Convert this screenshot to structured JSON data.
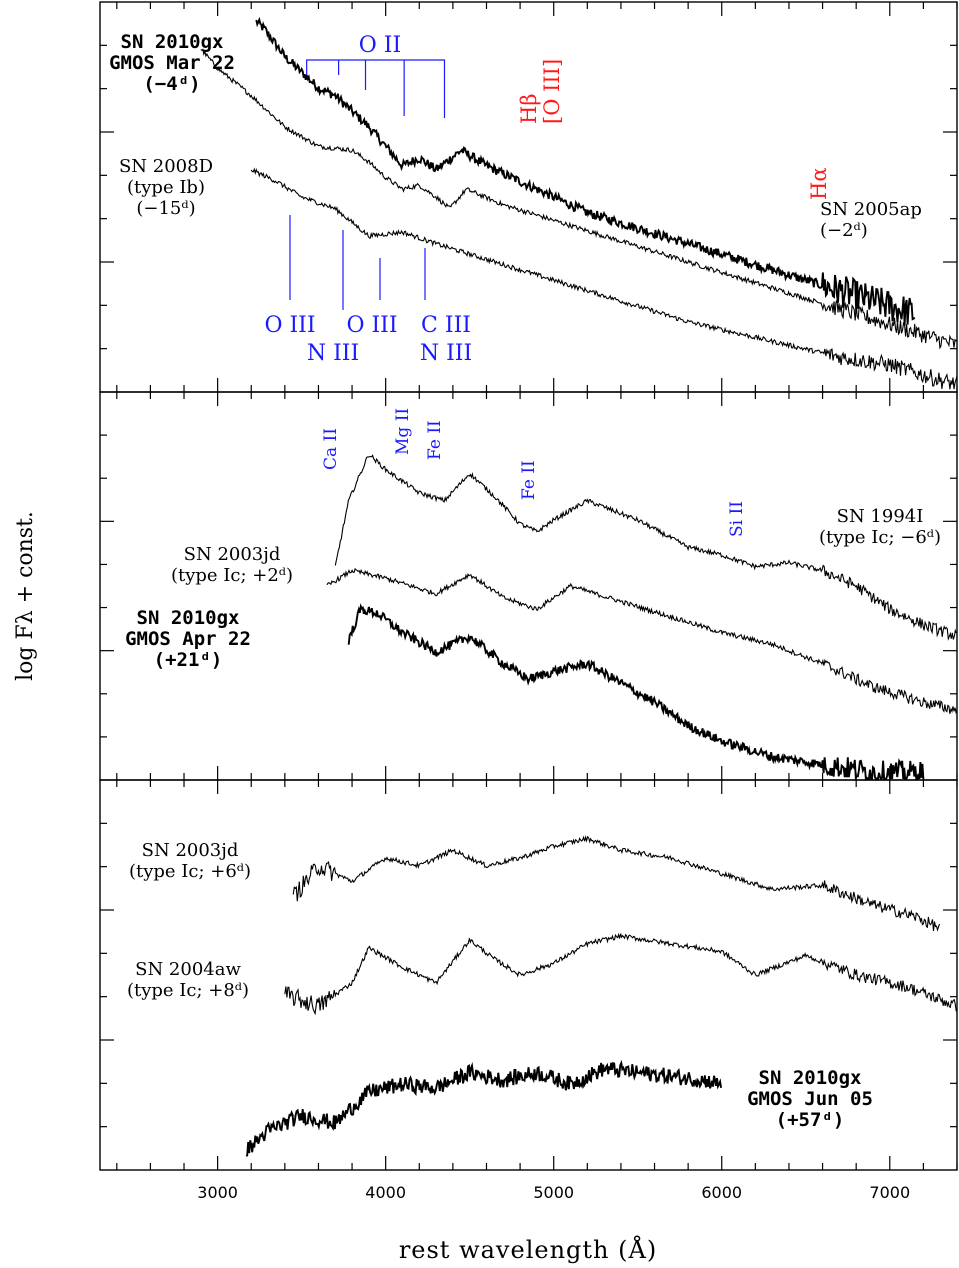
{
  "colors": {
    "ion_lines": "#1a1aff",
    "hydrogen_lines": "#ff1a1a",
    "spectra": "#000000"
  },
  "chart_data": {
    "type": "line",
    "xlabel": "rest wavelength (Å)",
    "ylabel": "log Fλ + const.",
    "xlim": [
      2300,
      7400
    ],
    "x_ticks": [
      3000,
      4000,
      5000,
      6000,
      7000
    ],
    "x_tick_labels": [
      "3000",
      "4000",
      "5000",
      "6000",
      "7000"
    ],
    "grid": false,
    "panels": [
      {
        "series": [
          {
            "label_lines": [
              "SN 2010gx",
              "GMOS Mar 22",
              "(−4ᵈ)"
            ],
            "bold": true,
            "points": [
              [
                3230,
                0.95
              ],
              [
                3280,
                0.93
              ],
              [
                3400,
                0.86
              ],
              [
                3500,
                0.82
              ],
              [
                3600,
                0.78
              ],
              [
                3700,
                0.76
              ],
              [
                3800,
                0.72
              ],
              [
                3900,
                0.68
              ],
              [
                4000,
                0.63
              ],
              [
                4100,
                0.58
              ],
              [
                4200,
                0.6
              ],
              [
                4300,
                0.57
              ],
              [
                4450,
                0.62
              ],
              [
                4600,
                0.58
              ],
              [
                4800,
                0.54
              ],
              [
                5000,
                0.5
              ],
              [
                5200,
                0.46
              ],
              [
                5500,
                0.42
              ],
              [
                5800,
                0.38
              ],
              [
                6100,
                0.34
              ],
              [
                6400,
                0.3
              ],
              [
                6700,
                0.26
              ],
              [
                7000,
                0.22
              ],
              [
                7150,
                0.2
              ]
            ]
          },
          {
            "label_lines": [
              "SN 2005ap",
              "(−2ᵈ)"
            ],
            "bold": false,
            "points": [
              [
                2900,
                0.88
              ],
              [
                3000,
                0.83
              ],
              [
                3200,
                0.76
              ],
              [
                3400,
                0.68
              ],
              [
                3600,
                0.63
              ],
              [
                3800,
                0.62
              ],
              [
                3900,
                0.59
              ],
              [
                4000,
                0.55
              ],
              [
                4100,
                0.52
              ],
              [
                4200,
                0.53
              ],
              [
                4300,
                0.5
              ],
              [
                4380,
                0.47
              ],
              [
                4480,
                0.52
              ],
              [
                4700,
                0.48
              ],
              [
                5000,
                0.44
              ],
              [
                5300,
                0.4
              ],
              [
                5600,
                0.36
              ],
              [
                5900,
                0.32
              ],
              [
                6200,
                0.28
              ],
              [
                6500,
                0.24
              ],
              [
                6800,
                0.2
              ],
              [
                7100,
                0.16
              ],
              [
                7400,
                0.12
              ]
            ]
          },
          {
            "label_lines": [
              "SN 2008D",
              "(type Ib)",
              "(−15ᵈ)"
            ],
            "bold": false,
            "points": [
              [
                3200,
                0.57
              ],
              [
                3350,
                0.54
              ],
              [
                3500,
                0.5
              ],
              [
                3700,
                0.47
              ],
              [
                3900,
                0.4
              ],
              [
                4100,
                0.41
              ],
              [
                4300,
                0.38
              ],
              [
                4600,
                0.34
              ],
              [
                4900,
                0.3
              ],
              [
                5200,
                0.26
              ],
              [
                5500,
                0.22
              ],
              [
                5800,
                0.18
              ],
              [
                6100,
                0.15
              ],
              [
                6400,
                0.12
              ],
              [
                6700,
                0.09
              ],
              [
                7000,
                0.07
              ],
              [
                7300,
                0.03
              ],
              [
                7400,
                0.02
              ]
            ]
          }
        ],
        "annotations": [
          {
            "text": "O  II",
            "color": "blue",
            "lines": [
              3530,
              3720,
              3880,
              4110,
              4350
            ]
          },
          {
            "text": "O  III",
            "color": "blue",
            "line": 3440
          },
          {
            "text": "N  III",
            "color": "blue",
            "line": 3760
          },
          {
            "text": "O  III",
            "color": "blue",
            "line": 3970
          },
          {
            "text": "C  III",
            "color": "blue",
            "line": 4240
          },
          {
            "text": "N  III",
            "color": "blue",
            "line": 4240
          },
          {
            "text": "Hβ",
            "color": "red",
            "wl": 4861
          },
          {
            "text": "[O III]",
            "color": "red",
            "wl": 5007
          },
          {
            "text": "Hα",
            "color": "red",
            "wl": 6563
          }
        ]
      },
      {
        "series": [
          {
            "label_lines": [
              "SN 1994I",
              "(type Ic; −6ᵈ)"
            ],
            "bold": false,
            "points": [
              [
                3700,
                0.55
              ],
              [
                3780,
                0.72
              ],
              [
                3900,
                0.84
              ],
              [
                4000,
                0.8
              ],
              [
                4200,
                0.74
              ],
              [
                4350,
                0.72
              ],
              [
                4500,
                0.79
              ],
              [
                4650,
                0.73
              ],
              [
                4800,
                0.66
              ],
              [
                4900,
                0.64
              ],
              [
                5000,
                0.67
              ],
              [
                5200,
                0.72
              ],
              [
                5500,
                0.67
              ],
              [
                5800,
                0.6
              ],
              [
                6000,
                0.58
              ],
              [
                6200,
                0.55
              ],
              [
                6400,
                0.56
              ],
              [
                6600,
                0.54
              ],
              [
                6800,
                0.5
              ],
              [
                7000,
                0.44
              ],
              [
                7200,
                0.4
              ],
              [
                7400,
                0.37
              ]
            ]
          },
          {
            "label_lines": [
              "SN 2003jd",
              "(type Ic; +2ᵈ)"
            ],
            "bold": false,
            "points": [
              [
                3650,
                0.5
              ],
              [
                3800,
                0.54
              ],
              [
                4000,
                0.52
              ],
              [
                4300,
                0.48
              ],
              [
                4500,
                0.53
              ],
              [
                4700,
                0.47
              ],
              [
                4900,
                0.44
              ],
              [
                5100,
                0.5
              ],
              [
                5400,
                0.46
              ],
              [
                5700,
                0.42
              ],
              [
                6000,
                0.38
              ],
              [
                6300,
                0.35
              ],
              [
                6600,
                0.3
              ],
              [
                6900,
                0.24
              ],
              [
                7200,
                0.2
              ],
              [
                7400,
                0.18
              ]
            ]
          },
          {
            "label_lines": [
              "SN 2010gx",
              "GMOS Apr 22",
              "(+21ᵈ)"
            ],
            "bold": true,
            "points": [
              [
                3780,
                0.36
              ],
              [
                3850,
                0.44
              ],
              [
                3950,
                0.43
              ],
              [
                4100,
                0.38
              ],
              [
                4300,
                0.33
              ],
              [
                4500,
                0.37
              ],
              [
                4700,
                0.3
              ],
              [
                4850,
                0.26
              ],
              [
                5000,
                0.28
              ],
              [
                5200,
                0.3
              ],
              [
                5400,
                0.25
              ],
              [
                5600,
                0.2
              ],
              [
                5800,
                0.14
              ],
              [
                6000,
                0.1
              ],
              [
                6300,
                0.06
              ],
              [
                6600,
                0.04
              ],
              [
                6900,
                0.02
              ],
              [
                7200,
                0.02
              ]
            ]
          }
        ],
        "annotations": [
          {
            "text": "Ca II",
            "color": "blue",
            "wl": 3760
          },
          {
            "text": "Mg II",
            "color": "blue",
            "wl": 4100
          },
          {
            "text": "Fe II",
            "color": "blue",
            "wl": 4250
          },
          {
            "text": "Fe II",
            "color": "blue",
            "wl": 4850
          },
          {
            "text": "Si II",
            "color": "blue",
            "wl": 6100
          }
        ]
      },
      {
        "series": [
          {
            "label_lines": [
              "SN 2003jd",
              "(type Ic; +6ᵈ)"
            ],
            "bold": false,
            "points": [
              [
                3450,
                0.7
              ],
              [
                3600,
                0.78
              ],
              [
                3800,
                0.74
              ],
              [
                4000,
                0.8
              ],
              [
                4200,
                0.78
              ],
              [
                4400,
                0.82
              ],
              [
                4600,
                0.78
              ],
              [
                4800,
                0.8
              ],
              [
                5000,
                0.83
              ],
              [
                5200,
                0.85
              ],
              [
                5400,
                0.82
              ],
              [
                5700,
                0.8
              ],
              [
                6000,
                0.76
              ],
              [
                6300,
                0.72
              ],
              [
                6600,
                0.73
              ],
              [
                6900,
                0.68
              ],
              [
                7150,
                0.65
              ],
              [
                7300,
                0.62
              ]
            ]
          },
          {
            "label_lines": [
              "SN 2004aw",
              "(type Ic; +8ᵈ)"
            ],
            "bold": false,
            "points": [
              [
                3400,
                0.45
              ],
              [
                3600,
                0.42
              ],
              [
                3800,
                0.48
              ],
              [
                3900,
                0.57
              ],
              [
                4100,
                0.52
              ],
              [
                4300,
                0.48
              ],
              [
                4500,
                0.59
              ],
              [
                4650,
                0.54
              ],
              [
                4800,
                0.5
              ],
              [
                5000,
                0.53
              ],
              [
                5200,
                0.58
              ],
              [
                5400,
                0.6
              ],
              [
                5700,
                0.58
              ],
              [
                6000,
                0.56
              ],
              [
                6200,
                0.5
              ],
              [
                6500,
                0.55
              ],
              [
                6800,
                0.5
              ],
              [
                7100,
                0.47
              ],
              [
                7400,
                0.42
              ]
            ]
          },
          {
            "label_lines": [
              "SN 2010gx",
              "GMOS Jun 05",
              "(+57ᵈ)"
            ],
            "bold": true,
            "points": [
              [
                3170,
                0.05
              ],
              [
                3300,
                0.1
              ],
              [
                3500,
                0.14
              ],
              [
                3700,
                0.12
              ],
              [
                3900,
                0.2
              ],
              [
                4100,
                0.22
              ],
              [
                4300,
                0.21
              ],
              [
                4500,
                0.25
              ],
              [
                4700,
                0.23
              ],
              [
                4900,
                0.25
              ],
              [
                5100,
                0.22
              ],
              [
                5300,
                0.26
              ],
              [
                5500,
                0.25
              ],
              [
                5700,
                0.24
              ],
              [
                5900,
                0.23
              ],
              [
                6000,
                0.22
              ]
            ]
          }
        ],
        "annotations": []
      }
    ]
  }
}
